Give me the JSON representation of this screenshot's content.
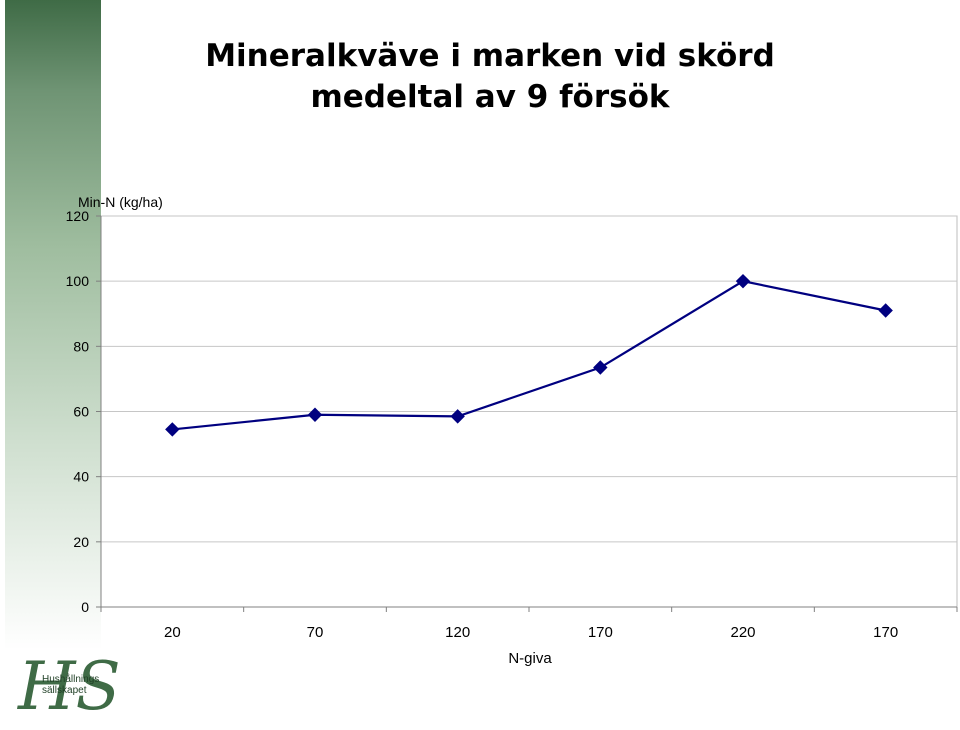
{
  "slide": {
    "title_line1": "Mineralkväve i marken vid skörd",
    "title_line2": "medeltal av 9 försök",
    "logo_line1": "Hushållnings",
    "logo_line2": "sällskapet"
  },
  "chart_data": {
    "type": "line",
    "title": "Mineralkväve i marken vid skörd medeltal av 9 försök",
    "xlabel": "N-giva",
    "ylabel": "Min-N (kg/ha)",
    "categories": [
      "20",
      "70",
      "120",
      "170",
      "220",
      "170"
    ],
    "series": [
      {
        "values": [
          54.5,
          59,
          58.5,
          73.5,
          100,
          91
        ],
        "color": "#000080"
      }
    ],
    "ylim": [
      0,
      120
    ],
    "yticks": [
      0,
      20,
      40,
      60,
      80,
      100,
      120
    ],
    "grid": true,
    "legend": "none",
    "marker": "diamond"
  }
}
